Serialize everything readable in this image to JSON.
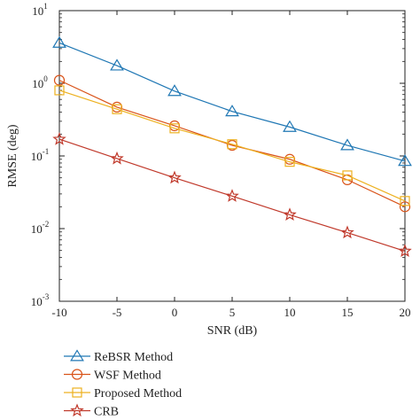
{
  "chart_data": {
    "type": "line",
    "title": "",
    "xlabel": "SNR (dB)",
    "ylabel": "RMSE (deg)",
    "x": [
      -10,
      -5,
      0,
      5,
      10,
      15,
      20
    ],
    "xlim": [
      -10,
      20
    ],
    "xticks": [
      "-10",
      "-5",
      "0",
      "5",
      "10",
      "15",
      "20"
    ],
    "ylim": [
      0.001,
      10
    ],
    "yscale": "log",
    "yticks": [
      {
        "base": "10",
        "exp": "-3"
      },
      {
        "base": "10",
        "exp": "-2"
      },
      {
        "base": "10",
        "exp": "-1"
      },
      {
        "base": "10",
        "exp": "0"
      },
      {
        "base": "10",
        "exp": "1"
      }
    ],
    "grid": false,
    "legend_position": "bottom-left, below the plot",
    "series": [
      {
        "name": "ReBSR Method",
        "marker": "triangle",
        "color": "#1f77b4",
        "values": [
          3.6,
          1.75,
          0.78,
          0.41,
          0.25,
          0.14,
          0.085
        ]
      },
      {
        "name": "WSF Method",
        "marker": "circle",
        "color": "#d95319",
        "values": [
          1.1,
          0.47,
          0.26,
          0.14,
          0.09,
          0.047,
          0.02
        ]
      },
      {
        "name": "Proposed Method",
        "marker": "square",
        "color": "#edb120",
        "values": [
          0.8,
          0.44,
          0.24,
          0.145,
          0.083,
          0.054,
          0.024
        ]
      },
      {
        "name": "CRB",
        "marker": "star",
        "color": "#c0392b",
        "values": [
          0.17,
          0.092,
          0.05,
          0.028,
          0.0155,
          0.0088,
          0.0049
        ]
      }
    ]
  }
}
